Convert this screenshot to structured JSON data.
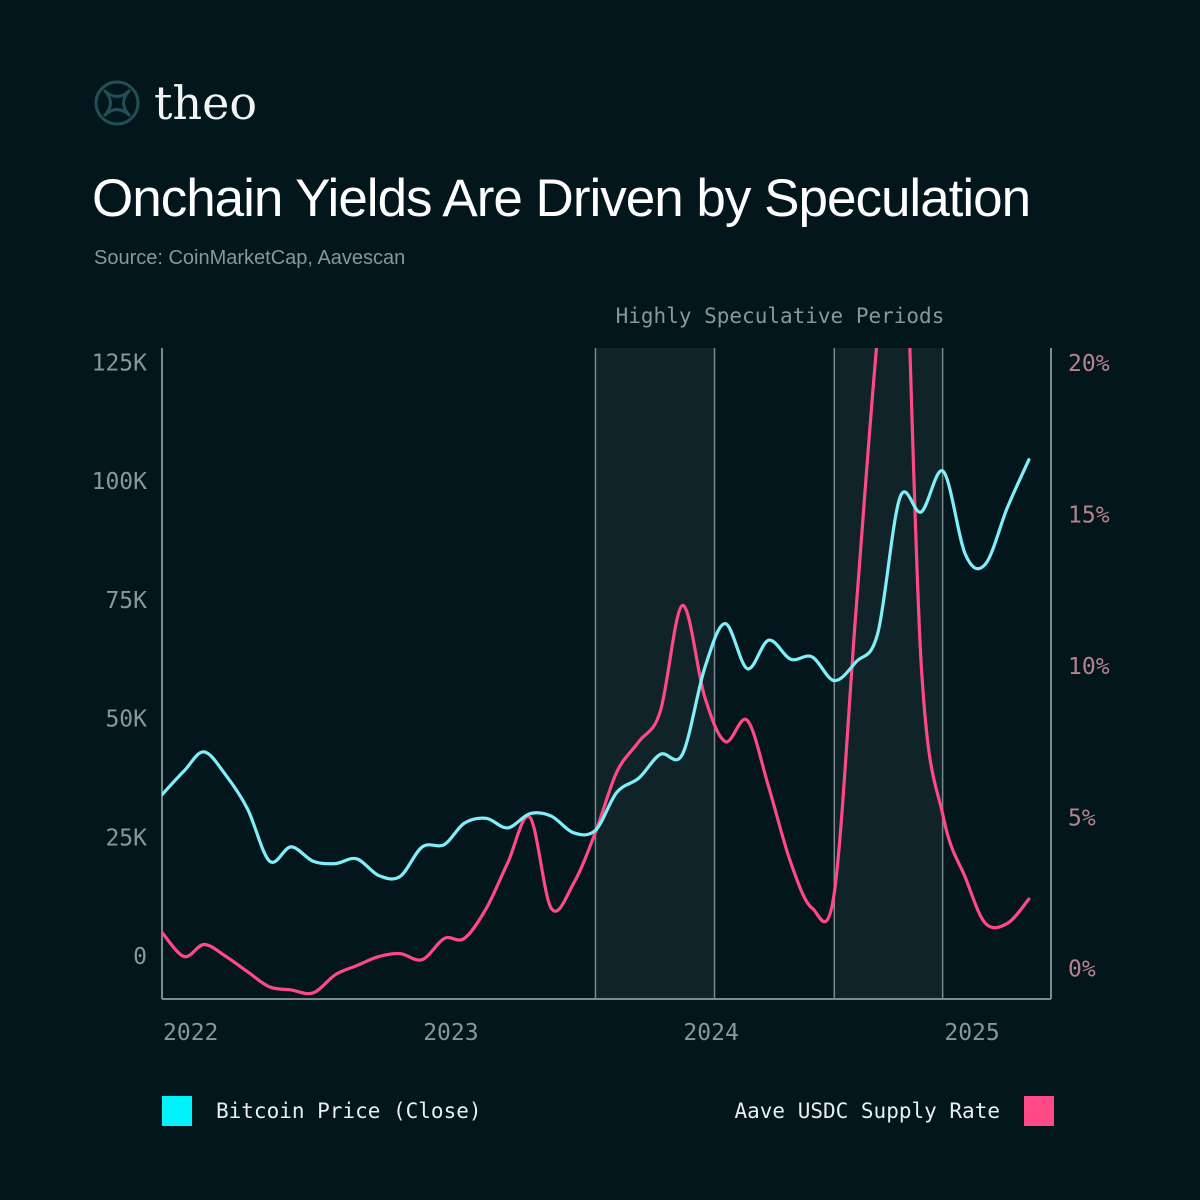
{
  "brand": {
    "name": "theo",
    "logo_icon": "theo-globe-icon"
  },
  "title": "Onchain Yields Are Driven by Speculation",
  "subtitle": "Source: CoinMarketCap, Aavescan",
  "colors": {
    "background": "#02161b",
    "btc": "#7ff0fa",
    "aave": "#fd4a86",
    "axis": "#7b8a8d",
    "band": "#0f2328",
    "left_tick": "#8a979a",
    "right_tick": "#b5838f"
  },
  "chart_data": {
    "type": "line",
    "band_label": "Highly Speculative Periods",
    "x_range": [
      "2022-01-01",
      "2025-06-01"
    ],
    "x_ticks": [
      {
        "date": "2022-01-01",
        "label": "2022"
      },
      {
        "date": "2023-01-01",
        "label": "2023"
      },
      {
        "date": "2024-01-01",
        "label": "2024"
      },
      {
        "date": "2025-01-01",
        "label": "2025"
      }
    ],
    "left_axis": {
      "range": [
        -9000,
        128000
      ],
      "ticks": [
        {
          "value": 0,
          "label": "0"
        },
        {
          "value": 25000,
          "label": "25K"
        },
        {
          "value": 50000,
          "label": "50K"
        },
        {
          "value": 75000,
          "label": "75K"
        },
        {
          "value": 100000,
          "label": "100K"
        },
        {
          "value": 125000,
          "label": "125K"
        }
      ]
    },
    "right_axis": {
      "range": [
        -1.0,
        20.5
      ],
      "ticks": [
        {
          "value": 0,
          "label": "0%"
        },
        {
          "value": 5,
          "label": "5%"
        },
        {
          "value": 10,
          "label": "10%"
        },
        {
          "value": 15,
          "label": "15%"
        },
        {
          "value": 20,
          "label": "20%"
        }
      ]
    },
    "bands": [
      {
        "start": "2023-09-01",
        "end": "2024-02-15"
      },
      {
        "start": "2024-08-01",
        "end": "2024-12-31"
      }
    ],
    "series": [
      {
        "name": "Bitcoin Price (Close)",
        "axis": "left",
        "points": [
          [
            "2022-01-01",
            34000
          ],
          [
            "2022-02-01",
            39000
          ],
          [
            "2022-03-01",
            43000
          ],
          [
            "2022-04-01",
            38000
          ],
          [
            "2022-05-01",
            31000
          ],
          [
            "2022-06-01",
            20000
          ],
          [
            "2022-07-01",
            23000
          ],
          [
            "2022-08-01",
            20000
          ],
          [
            "2022-09-01",
            19500
          ],
          [
            "2022-10-01",
            20500
          ],
          [
            "2022-11-01",
            17000
          ],
          [
            "2022-12-01",
            16800
          ],
          [
            "2023-01-01",
            23000
          ],
          [
            "2023-02-01",
            23500
          ],
          [
            "2023-03-01",
            28000
          ],
          [
            "2023-04-01",
            29000
          ],
          [
            "2023-05-01",
            27000
          ],
          [
            "2023-06-01",
            30000
          ],
          [
            "2023-07-01",
            29500
          ],
          [
            "2023-08-01",
            26000
          ],
          [
            "2023-09-01",
            26500
          ],
          [
            "2023-10-01",
            34500
          ],
          [
            "2023-11-01",
            37500
          ],
          [
            "2023-12-01",
            42500
          ],
          [
            "2024-01-01",
            42500
          ],
          [
            "2024-02-01",
            60500
          ],
          [
            "2024-03-01",
            70000
          ],
          [
            "2024-04-01",
            60500
          ],
          [
            "2024-05-01",
            66500
          ],
          [
            "2024-06-01",
            62500
          ],
          [
            "2024-07-01",
            63000
          ],
          [
            "2024-08-01",
            58000
          ],
          [
            "2024-09-01",
            62000
          ],
          [
            "2024-10-01",
            68000
          ],
          [
            "2024-11-01",
            96500
          ],
          [
            "2024-12-01",
            93500
          ],
          [
            "2025-01-01",
            102000
          ],
          [
            "2025-02-01",
            84500
          ],
          [
            "2025-03-01",
            82500
          ],
          [
            "2025-04-01",
            94500
          ],
          [
            "2025-05-01",
            104500
          ]
        ]
      },
      {
        "name": "Aave USDC Supply Rate",
        "axis": "right",
        "points": [
          [
            "2022-01-01",
            1.2
          ],
          [
            "2022-02-01",
            0.4
          ],
          [
            "2022-03-01",
            0.8
          ],
          [
            "2022-04-01",
            0.4
          ],
          [
            "2022-05-01",
            -0.1
          ],
          [
            "2022-06-01",
            -0.6
          ],
          [
            "2022-07-01",
            -0.7
          ],
          [
            "2022-08-01",
            -0.8
          ],
          [
            "2022-09-01",
            -0.2
          ],
          [
            "2022-10-01",
            0.1
          ],
          [
            "2022-11-01",
            0.4
          ],
          [
            "2022-12-01",
            0.5
          ],
          [
            "2023-01-01",
            0.3
          ],
          [
            "2023-02-01",
            1.0
          ],
          [
            "2023-03-01",
            1.0
          ],
          [
            "2023-04-01",
            2.0
          ],
          [
            "2023-05-01",
            3.5
          ],
          [
            "2023-06-01",
            5.0
          ],
          [
            "2023-07-01",
            2.0
          ],
          [
            "2023-08-01",
            2.8
          ],
          [
            "2023-09-01",
            4.5
          ],
          [
            "2023-10-01",
            6.5
          ],
          [
            "2023-11-01",
            7.5
          ],
          [
            "2023-12-01",
            8.5
          ],
          [
            "2024-01-01",
            12.0
          ],
          [
            "2024-02-01",
            9.0
          ],
          [
            "2024-03-01",
            7.5
          ],
          [
            "2024-04-01",
            8.2
          ],
          [
            "2024-05-01",
            6.0
          ],
          [
            "2024-06-01",
            3.5
          ],
          [
            "2024-07-01",
            2.0
          ],
          [
            "2024-08-01",
            2.5
          ],
          [
            "2024-09-01",
            12.0
          ],
          [
            "2024-10-01",
            21.0
          ],
          [
            "2024-11-01",
            28.0
          ],
          [
            "2024-12-01",
            10.0
          ],
          [
            "2025-01-01",
            5.0
          ],
          [
            "2025-02-01",
            3.0
          ],
          [
            "2025-03-01",
            1.5
          ],
          [
            "2025-04-01",
            1.5
          ],
          [
            "2025-05-01",
            2.3
          ]
        ]
      }
    ]
  }
}
